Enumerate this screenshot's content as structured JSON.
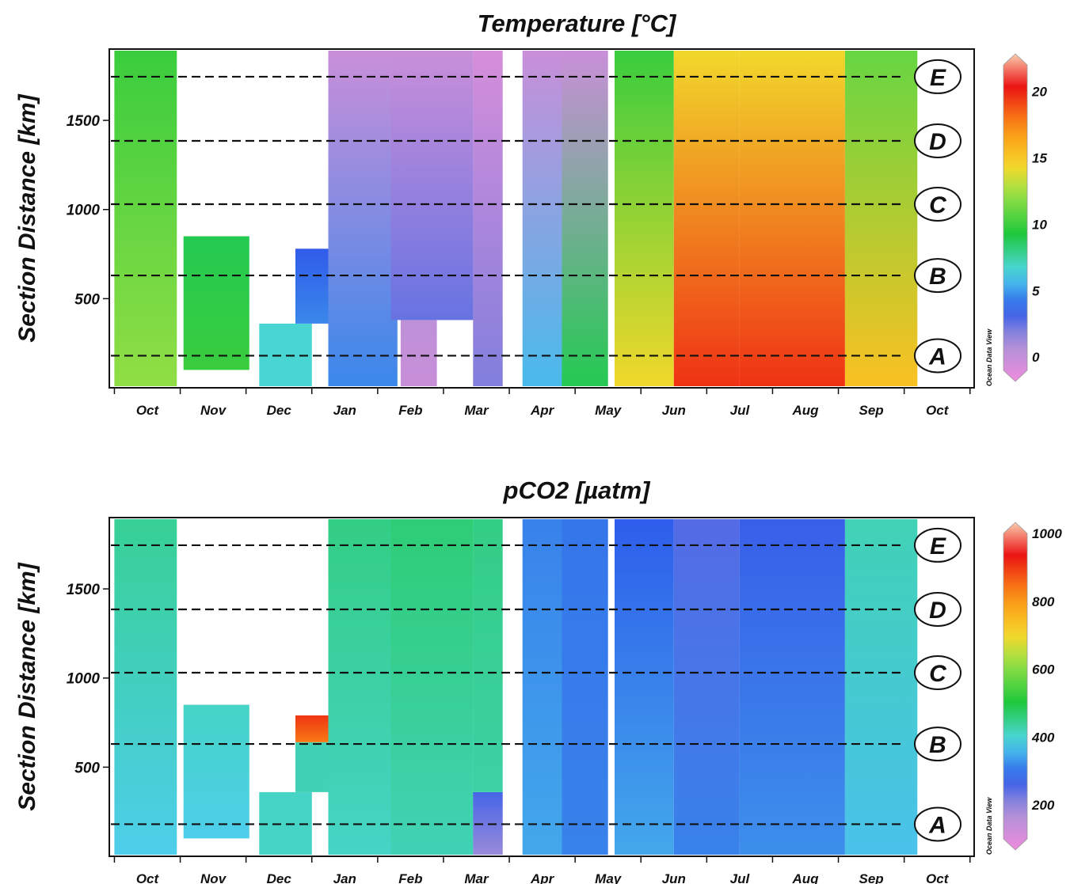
{
  "chart_data": [
    {
      "type": "heatmap",
      "title": "Temperature [°C]",
      "ylabel": "Section Distance [km]",
      "xlabel": "",
      "ylim": [
        0,
        1900
      ],
      "yticks": [
        500,
        1000,
        1500
      ],
      "month_labels": [
        "Oct",
        "Nov",
        "Dec",
        "Jan",
        "Feb",
        "Mar",
        "Apr",
        "May",
        "Jun",
        "Jul",
        "Aug",
        "Sep",
        "Oct"
      ],
      "sections": [
        {
          "label": "A",
          "distance": 180
        },
        {
          "label": "B",
          "distance": 630
        },
        {
          "label": "C",
          "distance": 1030
        },
        {
          "label": "D",
          "distance": 1385
        },
        {
          "label": "E",
          "distance": 1745
        }
      ],
      "colorbar": {
        "ticks": [
          0,
          5,
          10,
          15,
          20
        ],
        "range": [
          -1,
          22
        ]
      },
      "watermark": "Ocean Data View",
      "cruises": [
        {
          "month": "Oct",
          "x": [
            0.0,
            0.95
          ],
          "dist": [
            0,
            1900
          ],
          "value_bottom": 12,
          "value_top": 10
        },
        {
          "month": "Nov",
          "x": [
            1.05,
            2.05
          ],
          "dist": [
            100,
            850
          ],
          "value_bottom": 10,
          "value_top": 9
        },
        {
          "month": "Dec",
          "x": [
            2.2,
            3.0
          ],
          "dist": [
            0,
            360
          ],
          "value_bottom": 7,
          "value_top": 7
        },
        {
          "month": "Dec",
          "x": [
            2.75,
            3.25
          ],
          "dist": [
            360,
            780
          ],
          "value_bottom": 5,
          "value_top": 4
        },
        {
          "month": "Jan",
          "x": [
            3.25,
            4.3
          ],
          "dist": [
            0,
            1900
          ],
          "value_bottom": 5,
          "value_top": 0.5
        },
        {
          "month": "Feb",
          "x": [
            4.35,
            4.9
          ],
          "dist": [
            0,
            380
          ],
          "value_bottom": 0.5,
          "value_top": 1
        },
        {
          "month": "Feb",
          "x": [
            4.2,
            5.45
          ],
          "dist": [
            380,
            1900
          ],
          "value_bottom": 3,
          "value_top": 0.5
        },
        {
          "month": "Mar",
          "x": [
            5.45,
            5.9
          ],
          "dist": [
            0,
            1900
          ],
          "value_bottom": 2.5,
          "value_top": 0
        },
        {
          "month": "Apr",
          "x": [
            6.2,
            6.8
          ],
          "dist": [
            0,
            1900
          ],
          "value_bottom": 6,
          "value_top": 0.5
        },
        {
          "month": "May",
          "x": [
            6.8,
            7.5
          ],
          "dist": [
            0,
            1900
          ],
          "value_bottom": 9,
          "value_top": 0.5
        },
        {
          "month": "Jun",
          "x": [
            7.6,
            8.5
          ],
          "dist": [
            0,
            1900
          ],
          "value_bottom": 14,
          "value_top": 10
        },
        {
          "month": "Jul",
          "x": [
            8.5,
            9.5
          ],
          "dist": [
            0,
            1900
          ],
          "value_bottom": 19,
          "value_top": 14
        },
        {
          "month": "Aug",
          "x": [
            9.5,
            11.1
          ],
          "dist": [
            0,
            1900
          ],
          "value_bottom": 19,
          "value_top": 14
        },
        {
          "month": "Sep",
          "x": [
            11.1,
            12.2
          ],
          "dist": [
            0,
            1900
          ],
          "value_bottom": 15,
          "value_top": 11
        }
      ]
    },
    {
      "type": "heatmap",
      "title": "pCO2 [µatm]",
      "ylabel": "Section Distance [km]",
      "xlabel": "",
      "ylim": [
        0,
        1900
      ],
      "yticks": [
        500,
        1000,
        1500
      ],
      "month_labels": [
        "Oct",
        "Nov",
        "Dec",
        "Jan",
        "Feb",
        "Mar",
        "Apr",
        "May",
        "Jun",
        "Jul",
        "Aug",
        "Sep",
        "Oct"
      ],
      "sections": [
        {
          "label": "A",
          "distance": 180
        },
        {
          "label": "B",
          "distance": 630
        },
        {
          "label": "C",
          "distance": 1030
        },
        {
          "label": "D",
          "distance": 1385
        },
        {
          "label": "E",
          "distance": 1745
        }
      ],
      "colorbar": {
        "ticks": [
          200,
          400,
          600,
          800,
          1000
        ],
        "range": [
          100,
          1000
        ]
      },
      "watermark": "Ocean Data View",
      "cruises": [
        {
          "month": "Oct",
          "x": [
            0.0,
            0.95
          ],
          "dist": [
            0,
            1900
          ],
          "value_bottom": 390,
          "value_top": 450
        },
        {
          "month": "Nov",
          "x": [
            1.05,
            2.05
          ],
          "dist": [
            100,
            850
          ],
          "value_bottom": 390,
          "value_top": 420
        },
        {
          "month": "Dec",
          "x": [
            2.2,
            3.0
          ],
          "dist": [
            0,
            360
          ],
          "value_bottom": 420,
          "value_top": 420
        },
        {
          "month": "Dec",
          "x": [
            2.75,
            3.25
          ],
          "dist": [
            360,
            640
          ],
          "value_bottom": 430,
          "value_top": 430
        },
        {
          "month": "Dec",
          "x": [
            2.75,
            3.45
          ],
          "dist": [
            640,
            790
          ],
          "value_bottom": 820,
          "value_top": 880
        },
        {
          "month": "Jan",
          "x": [
            3.25,
            4.3
          ],
          "dist": [
            0,
            1900
          ],
          "value_bottom": 420,
          "value_top": 460
        },
        {
          "month": "Feb",
          "x": [
            4.2,
            5.45
          ],
          "dist": [
            0,
            1900
          ],
          "value_bottom": 430,
          "value_top": 470
        },
        {
          "month": "Mar",
          "x": [
            5.45,
            5.9
          ],
          "dist": [
            0,
            360
          ],
          "value_bottom": 220,
          "value_top": 280
        },
        {
          "month": "Mar",
          "x": [
            5.45,
            5.9
          ],
          "dist": [
            360,
            1900
          ],
          "value_bottom": 440,
          "value_top": 460
        },
        {
          "month": "Apr",
          "x": [
            6.2,
            6.8
          ],
          "dist": [
            0,
            1900
          ],
          "value_bottom": 360,
          "value_top": 330
        },
        {
          "month": "May",
          "x": [
            6.8,
            7.5
          ],
          "dist": [
            0,
            1900
          ],
          "value_bottom": 330,
          "value_top": 320
        },
        {
          "month": "Jun",
          "x": [
            7.6,
            8.5
          ],
          "dist": [
            0,
            1900
          ],
          "value_bottom": 360,
          "value_top": 300
        },
        {
          "month": "Jul",
          "x": [
            8.5,
            9.5
          ],
          "dist": [
            0,
            1900
          ],
          "value_bottom": 330,
          "value_top": 270
        },
        {
          "month": "Aug",
          "x": [
            9.5,
            11.1
          ],
          "dist": [
            0,
            1900
          ],
          "value_bottom": 340,
          "value_top": 290
        },
        {
          "month": "Sep",
          "x": [
            11.1,
            12.2
          ],
          "dist": [
            0,
            1900
          ],
          "value_bottom": 380,
          "value_top": 430
        }
      ]
    }
  ]
}
